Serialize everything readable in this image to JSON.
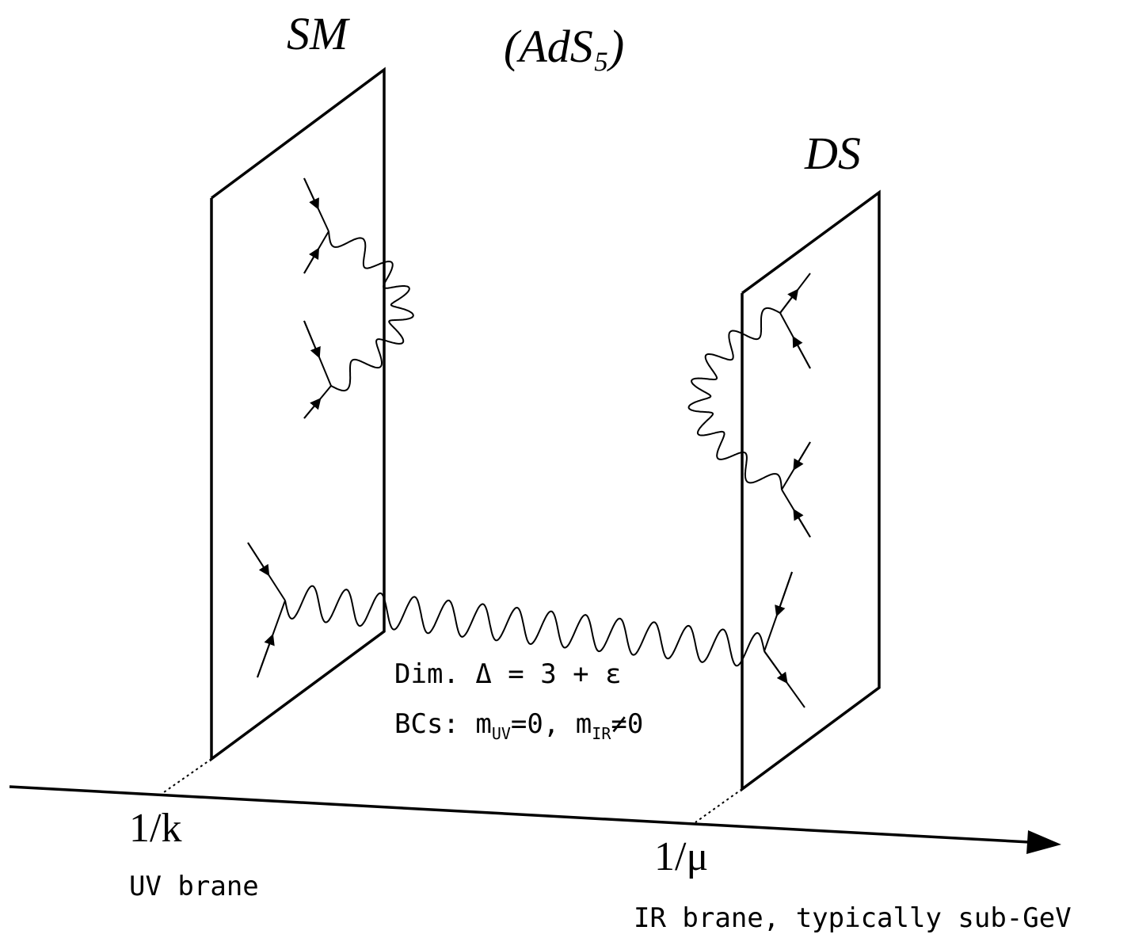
{
  "labels": {
    "sm": "SM",
    "ads": "(AdS₅)",
    "ds": "DS",
    "dim": "Dim. Δ = 3 + ε",
    "bcs": {
      "lead": "BCs: m",
      "sub1": "UV",
      "mid": "=0, m",
      "sub2": "IR",
      "tail": "≠0"
    },
    "uv_pos": "1/k",
    "uv_name": "UV brane",
    "ir_pos": "1/μ",
    "ir_name": "IR brane, typically sub-GeV"
  }
}
